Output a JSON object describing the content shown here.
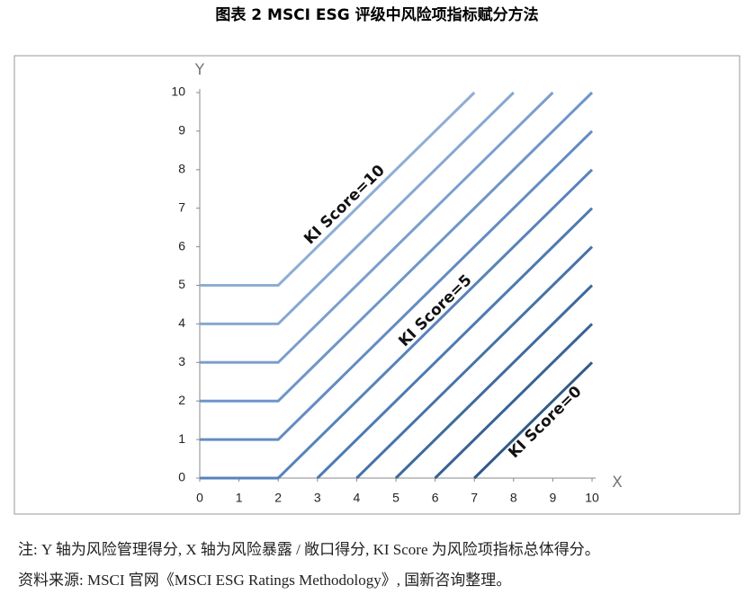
{
  "chart_data": {
    "type": "line",
    "title": "图表 2 MSCI ESG 评级中风险项指标赋分方法",
    "x_label": "X",
    "y_label": "Y",
    "xlim": [
      0,
      10
    ],
    "ylim": [
      0,
      10
    ],
    "xticks": [
      0,
      1,
      2,
      3,
      4,
      5,
      6,
      7,
      8,
      9,
      10
    ],
    "yticks": [
      0,
      1,
      2,
      3,
      4,
      5,
      6,
      7,
      8,
      9,
      10
    ],
    "grid": false,
    "series": [
      {
        "color": "#8fadd4",
        "x": [
          0,
          2,
          7
        ],
        "values": [
          5,
          5,
          10
        ]
      },
      {
        "color": "#86a7d0",
        "x": [
          0,
          2,
          8
        ],
        "values": [
          4,
          4,
          10
        ]
      },
      {
        "color": "#7b9fcc",
        "x": [
          0,
          2,
          9
        ],
        "values": [
          3,
          3,
          10
        ]
      },
      {
        "color": "#6f96c8",
        "x": [
          0,
          2,
          10
        ],
        "values": [
          2,
          2,
          10
        ]
      },
      {
        "color": "#638cc2",
        "x": [
          0,
          2,
          10
        ],
        "values": [
          1,
          1,
          9
        ]
      },
      {
        "color": "#5783bb",
        "x": [
          0,
          2,
          10
        ],
        "values": [
          0,
          0,
          8
        ]
      },
      {
        "color": "#4e7ab2",
        "x": [
          3,
          10
        ],
        "values": [
          0,
          7
        ]
      },
      {
        "color": "#4672a8",
        "x": [
          4,
          10
        ],
        "values": [
          0,
          6
        ]
      },
      {
        "color": "#3f6a9e",
        "x": [
          5,
          10
        ],
        "values": [
          0,
          5
        ]
      },
      {
        "color": "#386294",
        "x": [
          6,
          10
        ],
        "values": [
          0,
          4
        ]
      },
      {
        "color": "#315a89",
        "x": [
          7,
          10
        ],
        "values": [
          0,
          3
        ]
      }
    ],
    "annotations": [
      "KI Score=10",
      "KI Score=5",
      "KI Score=0"
    ]
  },
  "notes": [
    "注: Y 轴为风险管理得分, X 轴为风险暴露 / 敞口得分, KI Score 为风险项指标总体得分。",
    "资料来源: MSCI 官网《MSCI ESG Ratings Methodology》, 国新咨询整理。"
  ]
}
